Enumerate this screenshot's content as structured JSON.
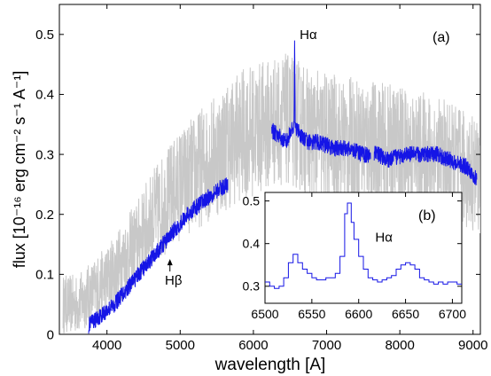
{
  "chart_data": [
    {
      "panel": "(a)",
      "type": "line",
      "xlabel": "wavelength [A]",
      "ylabel": "flux [10⁻¹⁶ erg cm⁻² s⁻¹ A⁻¹]",
      "xlim": [
        3350,
        9100
      ],
      "ylim": [
        0,
        0.55
      ],
      "xticks": [
        4000,
        5000,
        6000,
        7000,
        8000,
        9000
      ],
      "yticks": [
        0,
        0.1,
        0.2,
        0.3,
        0.4,
        0.5
      ],
      "grid": false,
      "annotations": [
        {
          "text": "Hα",
          "x": 6560,
          "y": 0.5
        },
        {
          "text": "Hβ",
          "x": 4860,
          "y": 0.09,
          "arrow": true
        }
      ],
      "series": [
        {
          "color": "#c8c8c8",
          "style": "noisy",
          "x": [
            3400,
            3600,
            3800,
            4000,
            4200,
            4400,
            4600,
            4800,
            5000,
            5200,
            5400,
            5600,
            5800,
            6000,
            6200,
            6400,
            6600,
            6800,
            7000,
            7200,
            7400,
            7600,
            7800,
            8000,
            8200,
            8400,
            8600,
            8800,
            9000,
            9100
          ],
          "y": [
            0.05,
            0.05,
            0.07,
            0.09,
            0.12,
            0.15,
            0.19,
            0.22,
            0.25,
            0.27,
            0.29,
            0.31,
            0.33,
            0.34,
            0.35,
            0.36,
            0.35,
            0.33,
            0.33,
            0.32,
            0.32,
            0.32,
            0.31,
            0.31,
            0.3,
            0.3,
            0.29,
            0.28,
            0.27,
            0.26
          ]
        },
        {
          "color": "#1515e6",
          "style": "spectrum",
          "x": [
            3750,
            3900,
            4100,
            4300,
            4500,
            4700,
            4900,
            5100,
            5300,
            5500,
            5650,
            6250,
            6350,
            6450,
            6550,
            6650,
            6750,
            6900,
            7100,
            7300,
            7500,
            7700,
            7850,
            8050,
            8300,
            8500,
            8700,
            8900,
            9050
          ],
          "y": [
            0.015,
            0.03,
            0.05,
            0.08,
            0.11,
            0.14,
            0.17,
            0.2,
            0.22,
            0.24,
            0.25,
            0.34,
            0.33,
            0.32,
            0.35,
            0.33,
            0.32,
            0.32,
            0.31,
            0.31,
            0.3,
            0.3,
            0.29,
            0.3,
            0.3,
            0.3,
            0.29,
            0.28,
            0.26
          ]
        }
      ]
    },
    {
      "panel": "(b)",
      "type": "line",
      "xlim": [
        6500,
        6710
      ],
      "ylim": [
        0.26,
        0.52
      ],
      "xticks": [
        6500,
        6550,
        6600,
        6650,
        6700
      ],
      "yticks": [
        0.3,
        0.4,
        0.5
      ],
      "annotations": [
        {
          "text": "Hα",
          "x": 6612,
          "y": 0.415
        }
      ],
      "series": [
        {
          "color": "#1515e6",
          "style": "step",
          "x": [
            6500,
            6505,
            6510,
            6515,
            6520,
            6525,
            6530,
            6535,
            6540,
            6545,
            6550,
            6555,
            6560,
            6565,
            6570,
            6575,
            6580,
            6585,
            6588,
            6592,
            6595,
            6600,
            6605,
            6610,
            6615,
            6620,
            6625,
            6630,
            6635,
            6640,
            6645,
            6650,
            6655,
            6660,
            6665,
            6670,
            6675,
            6680,
            6685,
            6690,
            6695,
            6700,
            6705,
            6710
          ],
          "y": [
            0.31,
            0.3,
            0.295,
            0.3,
            0.32,
            0.355,
            0.375,
            0.355,
            0.34,
            0.33,
            0.32,
            0.315,
            0.315,
            0.32,
            0.32,
            0.33,
            0.37,
            0.47,
            0.495,
            0.45,
            0.41,
            0.37,
            0.34,
            0.32,
            0.315,
            0.31,
            0.315,
            0.32,
            0.325,
            0.34,
            0.35,
            0.355,
            0.35,
            0.34,
            0.32,
            0.315,
            0.31,
            0.305,
            0.31,
            0.305,
            0.31,
            0.31,
            0.305,
            0.305
          ]
        }
      ]
    }
  ]
}
